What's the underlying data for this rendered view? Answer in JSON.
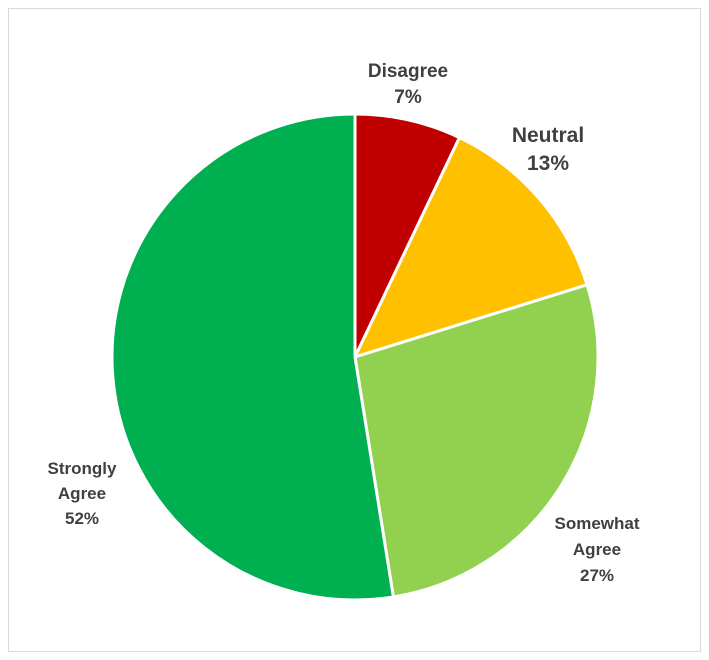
{
  "chart_data": {
    "type": "pie",
    "title": "",
    "legend": "none",
    "slices": [
      {
        "label_lines": [
          "Disagree"
        ],
        "percent_label": "7%",
        "value": 7,
        "color": "#c00000"
      },
      {
        "label_lines": [
          "Neutral"
        ],
        "percent_label": "13%",
        "value": 13,
        "color": "#ffc000"
      },
      {
        "label_lines": [
          "Somewhat",
          "Agree"
        ],
        "percent_label": "27%",
        "value": 27,
        "color": "#92d050"
      },
      {
        "label_lines": [
          "Strongly",
          "Agree"
        ],
        "percent_label": "52%",
        "value": 52,
        "color": "#00b050"
      }
    ]
  }
}
